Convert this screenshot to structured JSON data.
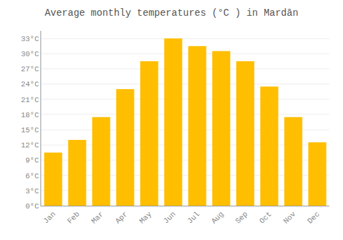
{
  "chart_data": {
    "type": "bar",
    "title": "Average monthly temperatures (°C ) in Mardān",
    "categories": [
      "Jan",
      "Feb",
      "Mar",
      "Apr",
      "May",
      "Jun",
      "Jul",
      "Aug",
      "Sep",
      "Oct",
      "Nov",
      "Dec"
    ],
    "values": [
      10.5,
      13.0,
      17.5,
      23.0,
      28.5,
      33.0,
      31.5,
      30.5,
      28.5,
      23.5,
      17.5,
      12.5
    ],
    "color": "#FFBE00",
    "ylim": [
      0,
      34.5
    ],
    "yticks": [
      {
        "value": 0,
        "label": "0°C"
      },
      {
        "value": 3,
        "label": "3°C"
      },
      {
        "value": 6,
        "label": "6°C"
      },
      {
        "value": 9,
        "label": "9°C"
      },
      {
        "value": 12,
        "label": "12°C"
      },
      {
        "value": 15,
        "label": "15°C"
      },
      {
        "value": 18,
        "label": "18°C"
      },
      {
        "value": 21,
        "label": "21°C"
      },
      {
        "value": 24,
        "label": "24°C"
      },
      {
        "value": 27,
        "label": "27°C"
      },
      {
        "value": 30,
        "label": "30°C"
      },
      {
        "value": 33,
        "label": "33°C"
      }
    ],
    "grid": true
  }
}
